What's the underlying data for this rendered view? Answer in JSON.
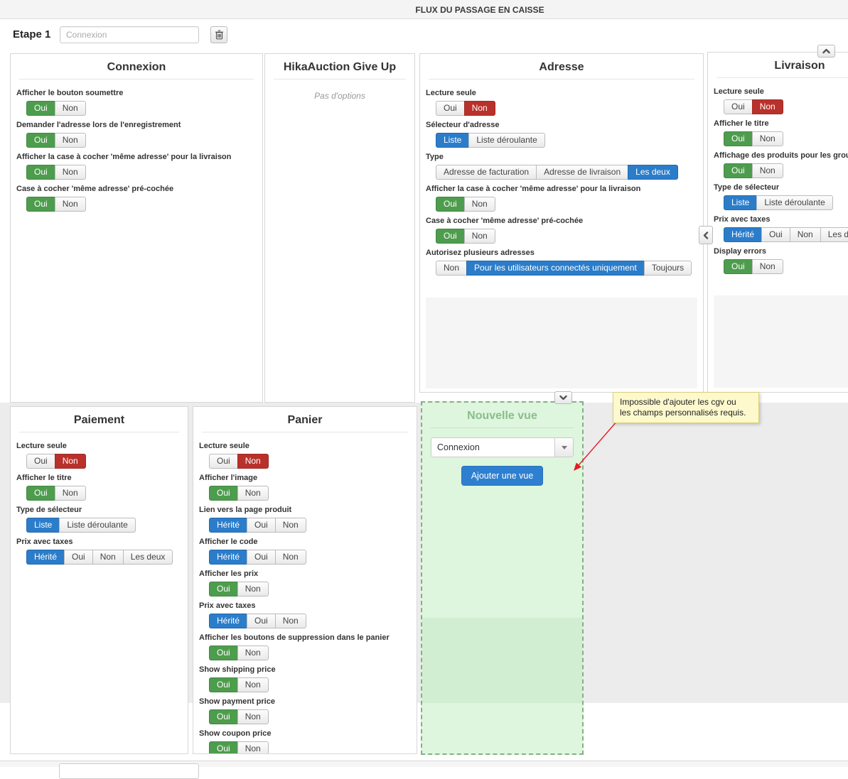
{
  "header": {
    "title": "FLUX DU PASSAGE EN CAISSE"
  },
  "step_bar": {
    "label": "Etape 1",
    "input_placeholder": "Connexion"
  },
  "icons": {
    "delete": "trash-icon",
    "select_caret": "caret-down-icon",
    "scroll_up": "chevron-up-icon",
    "scroll_down": "chevron-down-icon",
    "collapse_left": "chevron-left-icon"
  },
  "colors": {
    "green": "#4e9c4e",
    "red": "#b9312b",
    "blue": "#2b7dca",
    "new_view_bg": "#ddf6dd",
    "tooltip_bg": "#fdf9cd"
  },
  "panels": {
    "connexion": {
      "title": "Connexion",
      "fields": [
        {
          "label": "Afficher le bouton soumettre",
          "options": [
            {
              "label": "Oui",
              "sel": "green"
            },
            {
              "label": "Non"
            }
          ]
        },
        {
          "label": "Demander l'adresse lors de l'enregistrement",
          "options": [
            {
              "label": "Oui",
              "sel": "green"
            },
            {
              "label": "Non"
            }
          ]
        },
        {
          "label": "Afficher la case à cocher 'même adresse' pour la livraison",
          "options": [
            {
              "label": "Oui",
              "sel": "green"
            },
            {
              "label": "Non"
            }
          ]
        },
        {
          "label": "Case à cocher 'même adresse' pré-cochée",
          "options": [
            {
              "label": "Oui",
              "sel": "green"
            },
            {
              "label": "Non"
            }
          ]
        }
      ]
    },
    "hikaauction": {
      "title": "HikaAuction Give Up",
      "empty": "Pas d'options"
    },
    "adresse": {
      "title": "Adresse",
      "fields": [
        {
          "label": "Lecture seule",
          "options": [
            {
              "label": "Oui"
            },
            {
              "label": "Non",
              "sel": "red"
            }
          ]
        },
        {
          "label": "Sélecteur d'adresse",
          "options": [
            {
              "label": "Liste",
              "sel": "blue"
            },
            {
              "label": "Liste déroulante"
            }
          ]
        },
        {
          "label": "Type",
          "options": [
            {
              "label": "Adresse de facturation"
            },
            {
              "label": "Adresse de livraison"
            },
            {
              "label": "Les deux",
              "sel": "blue"
            }
          ]
        },
        {
          "label": "Afficher la case à cocher 'même adresse' pour la livraison",
          "options": [
            {
              "label": "Oui",
              "sel": "green"
            },
            {
              "label": "Non"
            }
          ]
        },
        {
          "label": "Case à cocher 'même adresse' pré-cochée",
          "options": [
            {
              "label": "Oui",
              "sel": "green"
            },
            {
              "label": "Non"
            }
          ]
        },
        {
          "label": "Autorisez plusieurs adresses",
          "options": [
            {
              "label": "Non"
            },
            {
              "label": "Pour les utilisateurs connectés uniquement",
              "sel": "blue"
            },
            {
              "label": "Toujours"
            }
          ]
        }
      ]
    },
    "livraison": {
      "title": "Livraison",
      "fields": [
        {
          "label": "Lecture seule",
          "options": [
            {
              "label": "Oui"
            },
            {
              "label": "Non",
              "sel": "red"
            }
          ]
        },
        {
          "label": "Afficher le titre",
          "options": [
            {
              "label": "Oui",
              "sel": "green"
            },
            {
              "label": "Non"
            }
          ]
        },
        {
          "label": "Affichage des produits pour les groupes",
          "options": [
            {
              "label": "Oui",
              "sel": "green"
            },
            {
              "label": "Non"
            }
          ]
        },
        {
          "label": "Type de sélecteur",
          "options": [
            {
              "label": "Liste",
              "sel": "blue"
            },
            {
              "label": "Liste déroulante"
            }
          ]
        },
        {
          "label": "Prix avec taxes",
          "options": [
            {
              "label": "Hérité",
              "sel": "blue"
            },
            {
              "label": "Oui"
            },
            {
              "label": "Non"
            },
            {
              "label": "Les deux"
            }
          ]
        },
        {
          "label": "Display errors",
          "options": [
            {
              "label": "Oui",
              "sel": "green"
            },
            {
              "label": "Non"
            }
          ]
        }
      ]
    },
    "paiement": {
      "title": "Paiement",
      "fields": [
        {
          "label": "Lecture seule",
          "options": [
            {
              "label": "Oui"
            },
            {
              "label": "Non",
              "sel": "red"
            }
          ]
        },
        {
          "label": "Afficher le titre",
          "options": [
            {
              "label": "Oui",
              "sel": "green"
            },
            {
              "label": "Non"
            }
          ]
        },
        {
          "label": "Type de sélecteur",
          "options": [
            {
              "label": "Liste",
              "sel": "blue"
            },
            {
              "label": "Liste déroulante"
            }
          ]
        },
        {
          "label": "Prix avec taxes",
          "options": [
            {
              "label": "Hérité",
              "sel": "blue"
            },
            {
              "label": "Oui"
            },
            {
              "label": "Non"
            },
            {
              "label": "Les deux"
            }
          ]
        }
      ]
    },
    "panier": {
      "title": "Panier",
      "fields": [
        {
          "label": "Lecture seule",
          "options": [
            {
              "label": "Oui"
            },
            {
              "label": "Non",
              "sel": "red"
            }
          ]
        },
        {
          "label": "Afficher l'image",
          "options": [
            {
              "label": "Oui",
              "sel": "green"
            },
            {
              "label": "Non"
            }
          ]
        },
        {
          "label": "Lien vers la page produit",
          "options": [
            {
              "label": "Hérité",
              "sel": "blue"
            },
            {
              "label": "Oui"
            },
            {
              "label": "Non"
            }
          ]
        },
        {
          "label": "Afficher le code",
          "options": [
            {
              "label": "Hérité",
              "sel": "blue"
            },
            {
              "label": "Oui"
            },
            {
              "label": "Non"
            }
          ]
        },
        {
          "label": "Afficher les prix",
          "options": [
            {
              "label": "Oui",
              "sel": "green"
            },
            {
              "label": "Non"
            }
          ]
        },
        {
          "label": "Prix avec taxes",
          "options": [
            {
              "label": "Hérité",
              "sel": "blue"
            },
            {
              "label": "Oui"
            },
            {
              "label": "Non"
            }
          ]
        },
        {
          "label": "Afficher les boutons de suppression dans le panier",
          "options": [
            {
              "label": "Oui",
              "sel": "green"
            },
            {
              "label": "Non"
            }
          ]
        },
        {
          "label": "Show shipping price",
          "options": [
            {
              "label": "Oui",
              "sel": "green"
            },
            {
              "label": "Non"
            }
          ]
        },
        {
          "label": "Show payment price",
          "options": [
            {
              "label": "Oui",
              "sel": "green"
            },
            {
              "label": "Non"
            }
          ]
        },
        {
          "label": "Show coupon price",
          "options": [
            {
              "label": "Oui",
              "sel": "green"
            },
            {
              "label": "Non"
            }
          ]
        }
      ]
    },
    "nouvelle_vue": {
      "title": "Nouvelle vue",
      "select_value": "Connexion",
      "button_label": "Ajouter une vue"
    }
  },
  "tooltip": {
    "line1": "Impossible d'ajouter les cgv ou",
    "line2": "les champs personnalisés requis."
  }
}
